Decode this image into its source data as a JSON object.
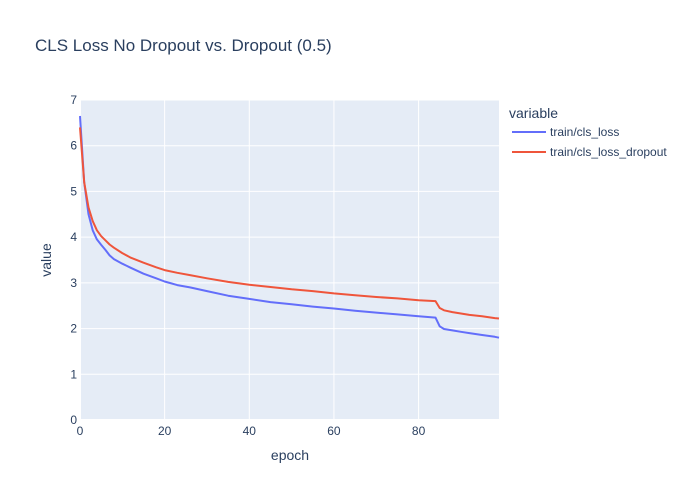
{
  "chart_data": {
    "type": "line",
    "title": "CLS Loss No Dropout vs. Dropout (0.5)",
    "xlabel": "epoch",
    "ylabel": "value",
    "xlim": [
      0,
      99
    ],
    "ylim": [
      0,
      7
    ],
    "xticks": [
      0,
      20,
      40,
      60,
      80
    ],
    "yticks": [
      0,
      1,
      2,
      3,
      4,
      5,
      6,
      7
    ],
    "grid": true,
    "legend": {
      "title": "variable",
      "placement": "right"
    },
    "series": [
      {
        "name": "train/cls_loss",
        "color": "#636efa",
        "x": [
          0,
          1,
          2,
          3,
          4,
          5,
          6,
          7,
          8,
          10,
          12,
          15,
          18,
          20,
          23,
          26,
          30,
          35,
          40,
          45,
          50,
          55,
          60,
          65,
          70,
          75,
          80,
          84,
          85,
          86,
          88,
          90,
          92,
          95,
          98,
          99
        ],
        "y": [
          6.65,
          5.2,
          4.5,
          4.15,
          3.95,
          3.83,
          3.72,
          3.6,
          3.52,
          3.42,
          3.33,
          3.2,
          3.1,
          3.03,
          2.95,
          2.9,
          2.82,
          2.72,
          2.65,
          2.58,
          2.53,
          2.48,
          2.44,
          2.39,
          2.35,
          2.31,
          2.27,
          2.24,
          2.05,
          1.99,
          1.96,
          1.93,
          1.9,
          1.86,
          1.82,
          1.8
        ]
      },
      {
        "name": "train/cls_loss_dropout",
        "color": "#ef553b",
        "x": [
          0,
          1,
          2,
          3,
          4,
          5,
          6,
          7,
          8,
          10,
          12,
          15,
          18,
          20,
          23,
          26,
          30,
          35,
          40,
          45,
          50,
          55,
          60,
          65,
          70,
          75,
          80,
          84,
          85,
          86,
          88,
          90,
          92,
          95,
          98,
          99
        ],
        "y": [
          6.4,
          5.2,
          4.65,
          4.35,
          4.15,
          4.02,
          3.93,
          3.84,
          3.77,
          3.65,
          3.55,
          3.44,
          3.34,
          3.28,
          3.22,
          3.17,
          3.1,
          3.02,
          2.96,
          2.91,
          2.86,
          2.82,
          2.77,
          2.73,
          2.69,
          2.66,
          2.62,
          2.6,
          2.45,
          2.4,
          2.36,
          2.33,
          2.3,
          2.27,
          2.23,
          2.22
        ]
      }
    ]
  }
}
